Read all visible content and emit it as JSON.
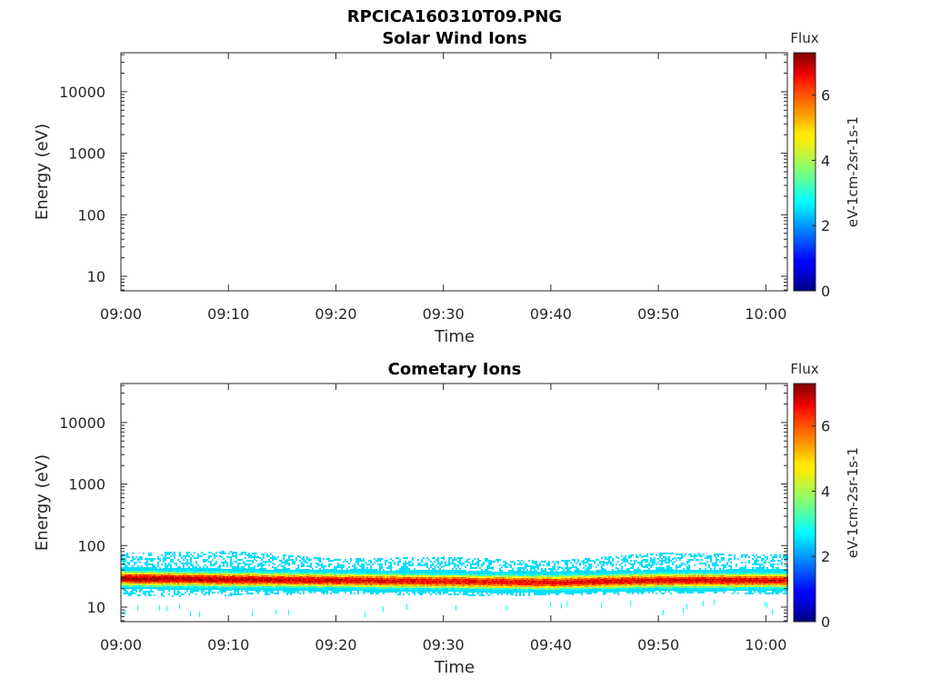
{
  "figure": {
    "filename": "RPCICA160310T09.PNG"
  },
  "chart_data": [
    {
      "type": "heatmap",
      "title": "Solar Wind Ions",
      "xlabel": "Time",
      "ylabel": "Energy (eV)",
      "x_ticks": [
        "09:00",
        "09:10",
        "09:20",
        "09:30",
        "09:40",
        "09:50",
        "10:00"
      ],
      "x_range": [
        "09:00",
        "10:02"
      ],
      "y_scale": "log",
      "y_ticks": [
        "10",
        "100",
        "1000",
        "10000"
      ],
      "y_range": [
        5.8,
        43000
      ],
      "colorbar": {
        "title": "Flux",
        "label": "eV-1cm-2sr-1s-1",
        "ticks": [
          "0",
          "2",
          "4",
          "6"
        ],
        "range": [
          0,
          7.3
        ],
        "colormap": "jet"
      },
      "data": []
    },
    {
      "type": "heatmap",
      "title": "Cometary Ions",
      "xlabel": "Time",
      "ylabel": "Energy (eV)",
      "x_ticks": [
        "09:00",
        "09:10",
        "09:20",
        "09:30",
        "09:40",
        "09:50",
        "10:00"
      ],
      "x_range": [
        "09:00",
        "10:02"
      ],
      "y_scale": "log",
      "y_ticks": [
        "10",
        "100",
        "1000",
        "10000"
      ],
      "y_range": [
        5.8,
        43000
      ],
      "colorbar": {
        "title": "Flux",
        "label": "eV-1cm-2sr-1s-1",
        "ticks": [
          "0",
          "2",
          "4",
          "6"
        ],
        "range": [
          0,
          7.3
        ],
        "colormap": "jet"
      },
      "data": [
        {
          "time": "09:00",
          "energy_min": 15,
          "energy_max": 75,
          "peak_energy": 30,
          "peak_flux": 7.0
        },
        {
          "time": "09:10",
          "energy_min": 16,
          "energy_max": 80,
          "peak_energy": 29,
          "peak_flux": 6.8
        },
        {
          "time": "09:20",
          "energy_min": 17,
          "energy_max": 60,
          "peak_energy": 28,
          "peak_flux": 6.6
        },
        {
          "time": "09:30",
          "energy_min": 16,
          "energy_max": 65,
          "peak_energy": 27,
          "peak_flux": 6.5
        },
        {
          "time": "09:40",
          "energy_min": 16,
          "energy_max": 55,
          "peak_energy": 26,
          "peak_flux": 6.5
        },
        {
          "time": "09:50",
          "energy_min": 17,
          "energy_max": 75,
          "peak_energy": 28,
          "peak_flux": 6.6
        },
        {
          "time": "10:00",
          "energy_min": 17,
          "energy_max": 70,
          "peak_energy": 28,
          "peak_flux": 6.6
        }
      ]
    }
  ]
}
